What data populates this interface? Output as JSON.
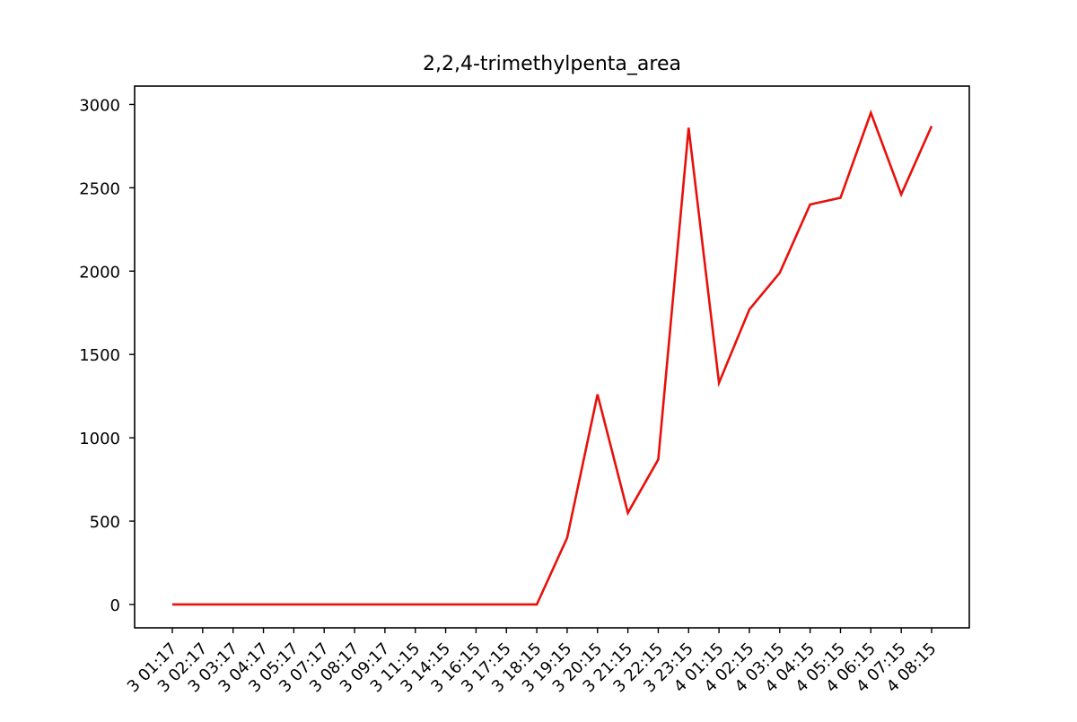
{
  "chart_data": {
    "type": "line",
    "title": "2,2,4-trimethylpenta_area",
    "xlabel": "",
    "ylabel": "",
    "x_tick_labels": [
      "3 01:17",
      "3 02:17",
      "3 03:17",
      "3 04:17",
      "3 05:17",
      "3 07:17",
      "3 08:17",
      "3 09:17",
      "3 11:15",
      "3 14:15",
      "3 16:15",
      "3 17:15",
      "3 18:15",
      "3 19:15",
      "3 20:15",
      "3 21:15",
      "3 22:15",
      "3 23:15",
      "4 01:15",
      "4 02:15",
      "4 03:15",
      "4 04:15",
      "4 05:15",
      "4 06:15",
      "4 07:15",
      "4 08:15"
    ],
    "y_ticks": [
      0,
      500,
      1000,
      1500,
      2000,
      2500,
      3000
    ],
    "ylim": [
      -140,
      3110
    ],
    "series": [
      {
        "color": "#e8100a",
        "values": [
          0,
          0,
          0,
          0,
          0,
          0,
          0,
          0,
          0,
          0,
          0,
          0,
          0,
          400,
          1260,
          550,
          870,
          2860,
          1330,
          1770,
          1990,
          2400,
          2440,
          2950,
          2460,
          2870
        ]
      }
    ],
    "grid": false,
    "legend": "none"
  }
}
